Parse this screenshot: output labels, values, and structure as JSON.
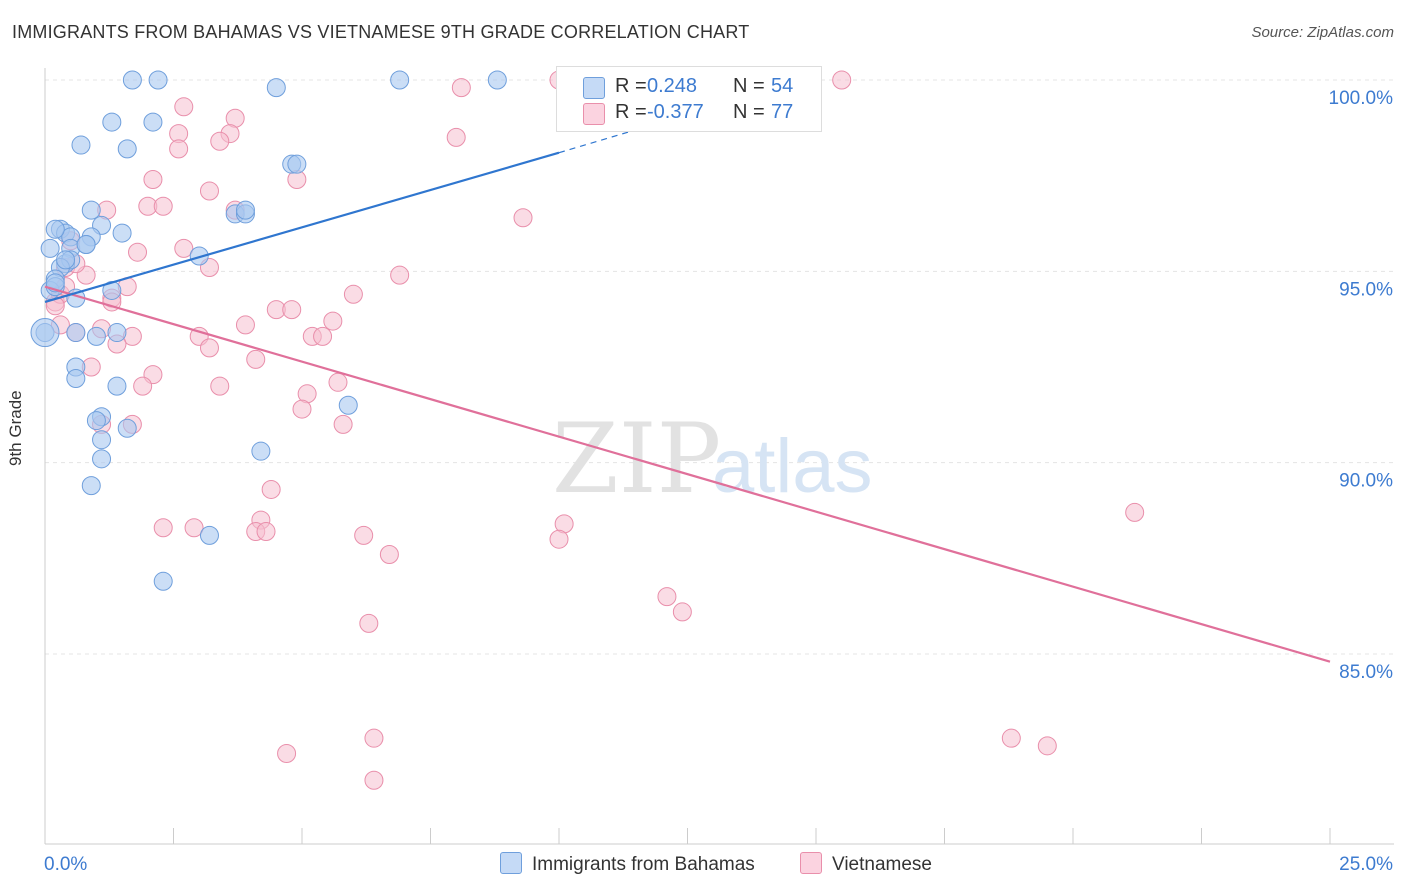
{
  "title": "IMMIGRANTS FROM BAHAMAS VS VIETNAMESE 9TH GRADE CORRELATION CHART",
  "source": "Source: ZipAtlas.com",
  "watermark": {
    "zip": "ZIP",
    "atlas": "atlas"
  },
  "colors": {
    "blue_fill": "#a9c8f0",
    "blue_stroke": "#6f9fdc",
    "blue_line": "#2f76cf",
    "pink_fill": "#f6bfd0",
    "pink_stroke": "#e98fab",
    "pink_line": "#e0709a",
    "axis_value": "#3d7bd0",
    "grid": "#e4e4e4"
  },
  "legend": {
    "rows": [
      {
        "r_label": "R =",
        "r_value": "0.248",
        "n_label": "N =",
        "n_value": "54"
      },
      {
        "r_label": "R =",
        "r_value": "-0.377",
        "n_label": "N =",
        "n_value": "77"
      }
    ]
  },
  "bottom_legend": [
    "Immigrants from Bahamas",
    "Vietnamese"
  ],
  "chart_data": {
    "type": "scatter",
    "title": "IMMIGRANTS FROM BAHAMAS VS VIETNAMESE 9TH GRADE CORRELATION CHART",
    "xlabel": "",
    "ylabel": "9th Grade",
    "xlim": [
      0,
      25
    ],
    "ylim": [
      80.5,
      100.6
    ],
    "x_tick_labels": [
      "0.0%",
      "25.0%"
    ],
    "y_ticks": [
      85,
      90,
      95,
      100
    ],
    "y_tick_labels": [
      "85.0%",
      "90.0%",
      "95.0%",
      "100.0%"
    ],
    "grid": true,
    "legend_position": "top-center",
    "series": [
      {
        "name": "Immigrants from Bahamas",
        "r": 0.248,
        "n": 54,
        "trend": {
          "x": [
            0.0,
            10.0
          ],
          "y": [
            94.2,
            98.1
          ]
        },
        "trend_dashed": {
          "x": [
            10.0,
            12.0
          ],
          "y": [
            98.1,
            98.9
          ]
        },
        "points": [
          [
            1.7,
            100.0
          ],
          [
            2.2,
            100.0
          ],
          [
            4.5,
            99.8
          ],
          [
            6.9,
            100.0
          ],
          [
            8.8,
            100.0
          ],
          [
            1.3,
            98.9
          ],
          [
            2.1,
            98.9
          ],
          [
            0.7,
            98.3
          ],
          [
            1.6,
            98.2
          ],
          [
            4.8,
            97.8
          ],
          [
            4.9,
            97.8
          ],
          [
            0.9,
            96.6
          ],
          [
            3.7,
            96.5
          ],
          [
            3.9,
            96.5
          ],
          [
            1.1,
            96.2
          ],
          [
            0.3,
            96.1
          ],
          [
            0.4,
            96.0
          ],
          [
            1.5,
            96.0
          ],
          [
            0.5,
            95.9
          ],
          [
            0.9,
            95.9
          ],
          [
            0.1,
            95.6
          ],
          [
            0.5,
            95.6
          ],
          [
            0.8,
            95.7
          ],
          [
            3.0,
            95.4
          ],
          [
            0.4,
            95.2
          ],
          [
            0.5,
            95.3
          ],
          [
            0.3,
            95.1
          ],
          [
            0.2,
            94.8
          ],
          [
            0.1,
            94.5
          ],
          [
            0.2,
            94.6
          ],
          [
            1.3,
            94.5
          ],
          [
            0.6,
            94.3
          ],
          [
            0.0,
            93.4
          ],
          [
            0.6,
            93.4
          ],
          [
            1.0,
            93.3
          ],
          [
            1.4,
            93.4
          ],
          [
            0.6,
            92.5
          ],
          [
            0.6,
            92.2
          ],
          [
            1.4,
            92.0
          ],
          [
            1.1,
            91.2
          ],
          [
            1.0,
            91.1
          ],
          [
            1.6,
            90.9
          ],
          [
            5.9,
            91.5
          ],
          [
            1.1,
            90.6
          ],
          [
            1.1,
            90.1
          ],
          [
            4.2,
            90.3
          ],
          [
            0.9,
            89.4
          ],
          [
            3.2,
            88.1
          ],
          [
            2.3,
            86.9
          ],
          [
            0.2,
            96.1
          ],
          [
            0.4,
            95.3
          ],
          [
            0.2,
            94.7
          ],
          [
            3.9,
            96.6
          ],
          [
            0.8,
            95.7
          ]
        ]
      },
      {
        "name": "Vietnamese",
        "r": -0.377,
        "n": 77,
        "trend": {
          "x": [
            0.0,
            25.0
          ],
          "y": [
            94.6,
            84.8
          ]
        },
        "points": [
          [
            10.0,
            100.0
          ],
          [
            15.5,
            100.0
          ],
          [
            8.1,
            99.8
          ],
          [
            2.7,
            99.3
          ],
          [
            3.7,
            99.0
          ],
          [
            2.6,
            98.6
          ],
          [
            3.6,
            98.6
          ],
          [
            2.6,
            98.2
          ],
          [
            3.4,
            98.4
          ],
          [
            8.0,
            98.5
          ],
          [
            2.1,
            97.4
          ],
          [
            4.9,
            97.4
          ],
          [
            3.2,
            97.1
          ],
          [
            2.0,
            96.7
          ],
          [
            2.3,
            96.7
          ],
          [
            3.7,
            96.6
          ],
          [
            1.2,
            96.6
          ],
          [
            9.3,
            96.4
          ],
          [
            0.5,
            95.8
          ],
          [
            1.8,
            95.5
          ],
          [
            2.7,
            95.6
          ],
          [
            0.4,
            95.1
          ],
          [
            3.2,
            95.1
          ],
          [
            6.9,
            94.9
          ],
          [
            0.8,
            94.9
          ],
          [
            1.6,
            94.6
          ],
          [
            6.0,
            94.4
          ],
          [
            0.2,
            94.2
          ],
          [
            0.3,
            94.4
          ],
          [
            1.3,
            94.3
          ],
          [
            0.2,
            94.1
          ],
          [
            1.3,
            94.2
          ],
          [
            4.5,
            94.0
          ],
          [
            4.8,
            94.0
          ],
          [
            5.6,
            93.7
          ],
          [
            3.9,
            93.6
          ],
          [
            0.3,
            93.6
          ],
          [
            0.6,
            93.4
          ],
          [
            1.1,
            93.5
          ],
          [
            1.7,
            93.3
          ],
          [
            3.0,
            93.3
          ],
          [
            5.2,
            93.3
          ],
          [
            5.4,
            93.3
          ],
          [
            1.4,
            93.1
          ],
          [
            3.2,
            93.0
          ],
          [
            4.1,
            92.7
          ],
          [
            0.9,
            92.5
          ],
          [
            2.1,
            92.3
          ],
          [
            5.7,
            92.1
          ],
          [
            1.9,
            92.0
          ],
          [
            3.4,
            92.0
          ],
          [
            5.1,
            91.8
          ],
          [
            5.0,
            91.4
          ],
          [
            5.8,
            91.0
          ],
          [
            1.1,
            91.0
          ],
          [
            1.7,
            91.0
          ],
          [
            4.4,
            89.3
          ],
          [
            4.2,
            88.5
          ],
          [
            4.1,
            88.2
          ],
          [
            4.3,
            88.2
          ],
          [
            2.3,
            88.3
          ],
          [
            2.9,
            88.3
          ],
          [
            6.2,
            88.1
          ],
          [
            10.1,
            88.4
          ],
          [
            10.0,
            88.0
          ],
          [
            21.2,
            88.7
          ],
          [
            6.7,
            87.6
          ],
          [
            12.1,
            86.5
          ],
          [
            12.4,
            86.1
          ],
          [
            6.3,
            85.8
          ],
          [
            18.8,
            82.8
          ],
          [
            19.5,
            82.6
          ],
          [
            4.7,
            82.4
          ],
          [
            6.4,
            82.8
          ],
          [
            6.4,
            81.7
          ],
          [
            0.4,
            94.6
          ],
          [
            0.6,
            95.2
          ]
        ]
      }
    ]
  }
}
